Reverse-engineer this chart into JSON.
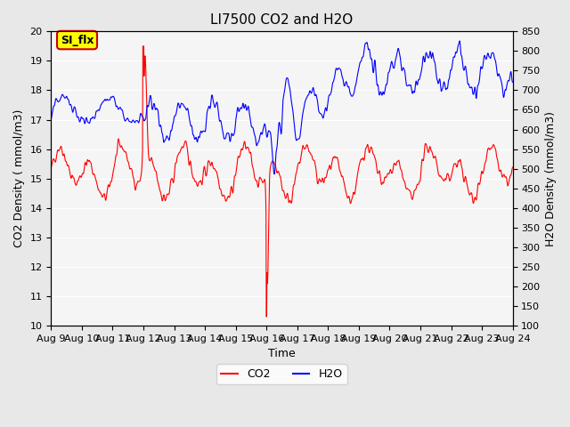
{
  "title": "LI7500 CO2 and H2O",
  "xlabel": "Time",
  "ylabel_left": "CO2 Density ( mmol/m3)",
  "ylabel_right": "H2O Density (mmol/m3)",
  "ylim_left": [
    10.0,
    20.0
  ],
  "ylim_right": [
    100,
    850
  ],
  "yticks_left": [
    10.0,
    11.0,
    12.0,
    13.0,
    14.0,
    15.0,
    16.0,
    17.0,
    18.0,
    19.0,
    20.0
  ],
  "yticks_right": [
    100,
    150,
    200,
    250,
    300,
    350,
    400,
    450,
    500,
    550,
    600,
    650,
    700,
    750,
    800,
    850
  ],
  "xtick_labels": [
    "Aug 9",
    "Aug 10",
    "Aug 11",
    "Aug 12",
    "Aug 13",
    "Aug 14",
    "Aug 15",
    "Aug 16",
    "Aug 17",
    "Aug 18",
    "Aug 19",
    "Aug 20",
    "Aug 21",
    "Aug 22",
    "Aug 23",
    "Aug 24"
  ],
  "co2_color": "#ff0000",
  "h2o_color": "#0000ff",
  "bg_color": "#e8e8e8",
  "plot_bg_color": "#ffffff",
  "annotation_text": "SI_flx",
  "annotation_bg": "#ffff00",
  "annotation_border": "#cc0000",
  "n_points": 1440
}
